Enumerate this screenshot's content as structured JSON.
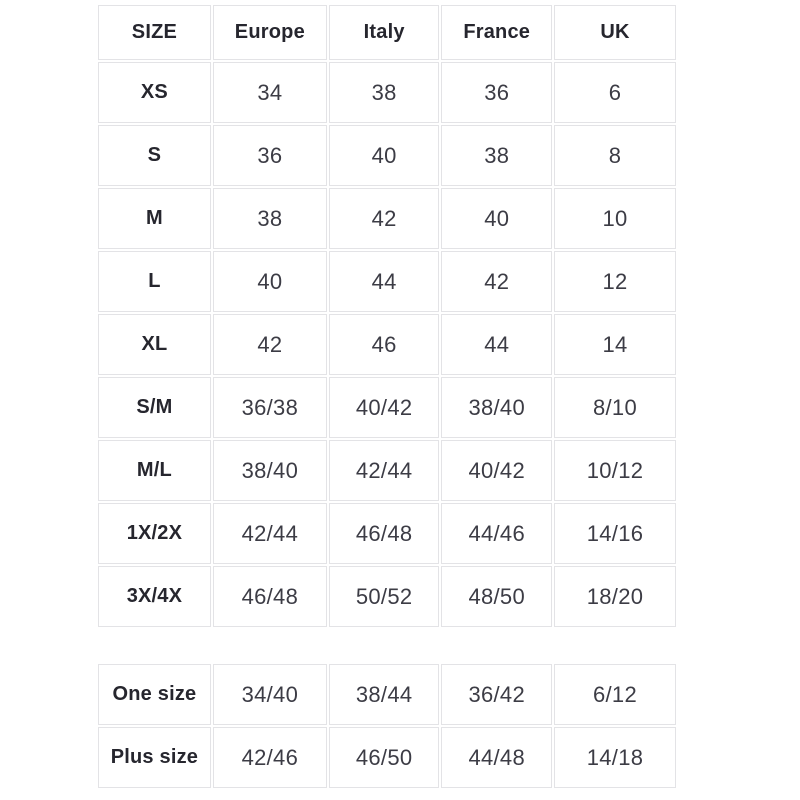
{
  "size_conversion_table": {
    "headers": [
      "SIZE",
      "Europe",
      "Italy",
      "France",
      "UK"
    ],
    "rows": [
      [
        "XS",
        "34",
        "38",
        "36",
        "6"
      ],
      [
        "S",
        "36",
        "40",
        "38",
        "8"
      ],
      [
        "M",
        "38",
        "42",
        "40",
        "10"
      ],
      [
        "L",
        "40",
        "44",
        "42",
        "12"
      ],
      [
        "XL",
        "42",
        "46",
        "44",
        "14"
      ],
      [
        "S/M",
        "36/38",
        "40/42",
        "38/40",
        "8/10"
      ],
      [
        "M/L",
        "38/40",
        "42/44",
        "40/42",
        "10/12"
      ],
      [
        "1X/2X",
        "42/44",
        "46/48",
        "44/46",
        "14/16"
      ],
      [
        "3X/4X",
        "46/48",
        "50/52",
        "48/50",
        "18/20"
      ]
    ]
  },
  "special_sizes_table": {
    "rows": [
      [
        "One size",
        "34/40",
        "38/44",
        "36/42",
        "6/12"
      ],
      [
        "Plus size",
        "42/46",
        "46/50",
        "44/48",
        "14/18"
      ]
    ]
  },
  "colors": {
    "label_text": "#26262e",
    "value_text": "#3c3c45",
    "cell_border": "#e3e3e6",
    "background": "#ffffff"
  }
}
